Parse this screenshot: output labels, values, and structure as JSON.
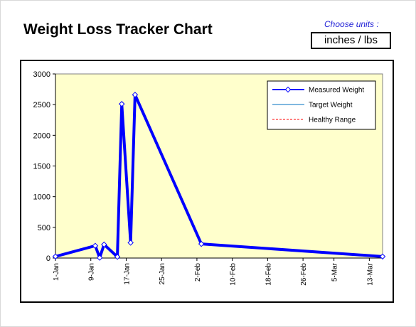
{
  "header": {
    "title": "Weight Loss Tracker Chart",
    "units_label": "Choose units :",
    "units_value": "inches / lbs"
  },
  "colors": {
    "measured": "#0000ff",
    "target": "#0070c0",
    "healthy": "#ff0000",
    "plot_bg": "#ffffcc"
  },
  "chart_data": {
    "type": "line",
    "title": "",
    "xlabel": "",
    "ylabel": "",
    "ylim": [
      0,
      3000
    ],
    "yticks": [
      0,
      500,
      1000,
      1500,
      2000,
      2500,
      3000
    ],
    "xlim": [
      "1-Jan",
      "16-Mar"
    ],
    "xticks": [
      "1-Jan",
      "9-Jan",
      "17-Jan",
      "25-Jan",
      "2-Feb",
      "10-Feb",
      "18-Feb",
      "26-Feb",
      "5-Mar",
      "13-Mar"
    ],
    "grid": false,
    "legend_position": "top-right",
    "series": [
      {
        "name": "Measured Weight",
        "points": [
          [
            "1-Jan",
            25
          ],
          [
            "10-Jan",
            200
          ],
          [
            "11-Jan",
            5
          ],
          [
            "12-Jan",
            220
          ],
          [
            "15-Jan",
            20
          ],
          [
            "16-Jan",
            2510
          ],
          [
            "18-Jan",
            250
          ],
          [
            "19-Jan",
            2660
          ],
          [
            "3-Feb",
            230
          ],
          [
            "16-Mar",
            25
          ]
        ]
      },
      {
        "name": "Target Weight",
        "points": []
      },
      {
        "name": "Healthy Range",
        "points": []
      }
    ]
  }
}
